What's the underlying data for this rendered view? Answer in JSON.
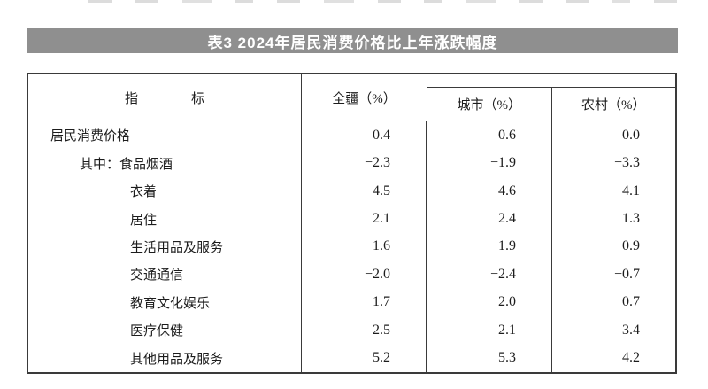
{
  "page": {
    "title_bar": {
      "text": "表3 2024年居民消费价格比上年涨跌幅度",
      "background_color": "#8f8f8f",
      "text_color": "#ffffff"
    }
  },
  "table": {
    "header": {
      "indicator": "指　　　　标",
      "region": "全疆（%）",
      "city": "城市（%）",
      "rural": "农村（%）"
    },
    "rows": [
      {
        "label": "居民消费价格",
        "values": [
          "0.4",
          "0.6",
          "0.0"
        ]
      },
      {
        "label": "其中：食品烟酒",
        "values": [
          "−2.3",
          "−1.9",
          "−3.3"
        ]
      },
      {
        "label": "衣着",
        "values": [
          "4.5",
          "4.6",
          "4.1"
        ]
      },
      {
        "label": "居住",
        "values": [
          "2.1",
          "2.4",
          "1.3"
        ]
      },
      {
        "label": "生活用品及服务",
        "values": [
          "1.6",
          "1.9",
          "0.9"
        ]
      },
      {
        "label": "交通通信",
        "values": [
          "−2.0",
          "−2.4",
          "−0.7"
        ]
      },
      {
        "label": "教育文化娱乐",
        "values": [
          "1.7",
          "2.0",
          "0.7"
        ]
      },
      {
        "label": "医疗保健",
        "values": [
          "2.5",
          "2.1",
          "3.4"
        ]
      },
      {
        "label": "其他用品及服务",
        "values": [
          "5.2",
          "5.3",
          "4.2"
        ]
      }
    ]
  },
  "chart_data": {
    "type": "table",
    "title": "表3 2024年居民消费价格比上年涨跌幅度",
    "categories": [
      "居民消费价格",
      "其中：食品烟酒",
      "衣着",
      "居住",
      "生活用品及服务",
      "交通通信",
      "教育文化娱乐",
      "医疗保健",
      "其他用品及服务"
    ],
    "series": [
      {
        "name": "全疆（%）",
        "values": [
          0.4,
          -2.3,
          4.5,
          2.1,
          1.6,
          -2.0,
          1.7,
          2.5,
          5.2
        ]
      },
      {
        "name": "城市（%）",
        "values": [
          0.6,
          -1.9,
          4.6,
          2.4,
          1.9,
          -2.4,
          2.0,
          2.1,
          5.3
        ]
      },
      {
        "name": "农村（%）",
        "values": [
          0.0,
          -3.3,
          4.1,
          1.3,
          0.9,
          -0.7,
          0.7,
          3.4,
          4.2
        ]
      }
    ]
  }
}
